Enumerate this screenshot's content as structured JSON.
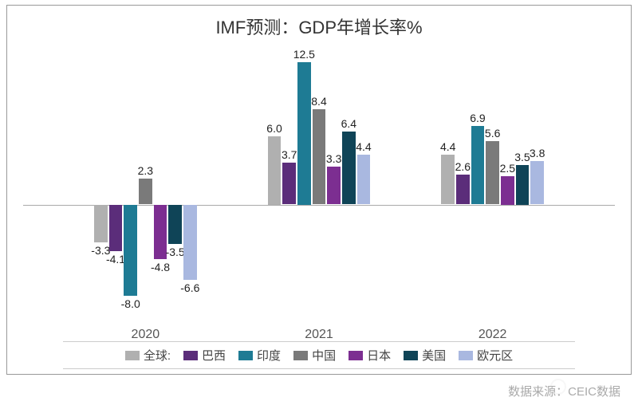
{
  "chart": {
    "type": "bar",
    "title": "IMF预测：GDP年增长率%",
    "title_fontsize": 22,
    "title_color": "#333333",
    "background_color": "#ffffff",
    "border_color": "#999999",
    "baseline_color": "#aaaaaa",
    "categories": [
      "2020",
      "2021",
      "2022"
    ],
    "series": [
      {
        "name": "全球:",
        "color": "#b0b0b0",
        "values": [
          -3.3,
          6.0,
          4.4
        ]
      },
      {
        "name": "巴西",
        "color": "#5b2d7a",
        "values": [
          -4.1,
          3.7,
          2.6
        ]
      },
      {
        "name": "印度",
        "color": "#1e7b94",
        "values": [
          -8.0,
          12.5,
          6.9
        ]
      },
      {
        "name": "中国",
        "color": "#7a7a7a",
        "values": [
          2.3,
          8.4,
          5.6
        ]
      },
      {
        "name": "日本",
        "color": "#7c2e91",
        "values": [
          -4.8,
          3.3,
          2.5
        ]
      },
      {
        "name": "美国",
        "color": "#0f4457",
        "values": [
          -3.5,
          6.4,
          3.5
        ]
      },
      {
        "name": "欧元区",
        "color": "#a9b8e0",
        "values": [
          -6.6,
          4.4,
          3.8
        ]
      }
    ],
    "y_min": -10,
    "y_max": 14,
    "label_fontsize": 14,
    "xaxis_fontsize": 16,
    "xaxis_color": "#555555",
    "bar_gap": 2,
    "group_gap_ratio": 0.12,
    "legend": {
      "border_color": "#cccccc",
      "swatch_width": 18,
      "swatch_height": 12,
      "fontsize": 15,
      "text_color": "#444444"
    }
  },
  "source": {
    "label": "数据来源：CEIC数据",
    "prefix": "数据来源：",
    "value": "CEIC Data",
    "color": "#aaaaaa",
    "fontsize": 15
  }
}
